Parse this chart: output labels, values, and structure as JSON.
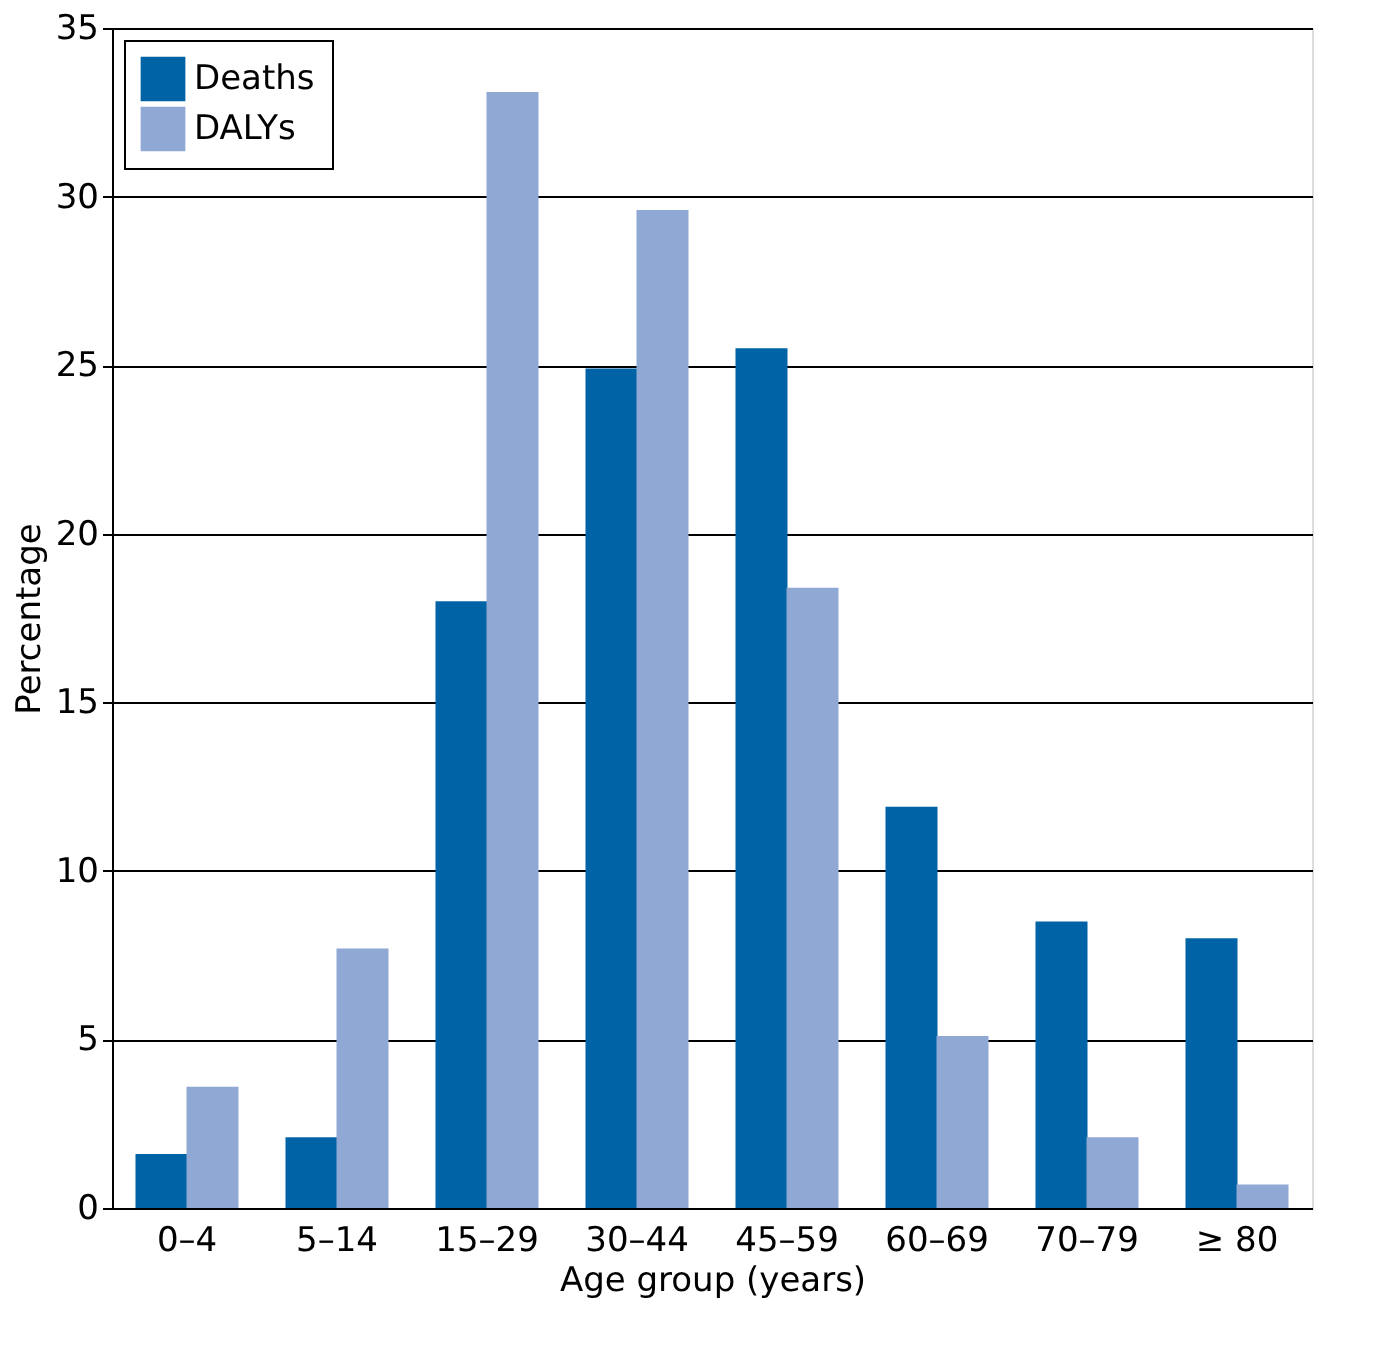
{
  "chart_data": {
    "type": "bar",
    "xlabel": "Age group (years)",
    "ylabel": "Percentage",
    "categories": [
      "0–4",
      "5–14",
      "15–29",
      "30–44",
      "45–59",
      "60–69",
      "70–79",
      "≥ 80"
    ],
    "series": [
      {
        "name": "Deaths",
        "color": "#0063a6",
        "values": [
          1.6,
          2.1,
          18.0,
          24.9,
          25.5,
          11.9,
          8.5,
          8.0
        ]
      },
      {
        "name": "DALYs",
        "color": "#8fa8d4",
        "values": [
          3.6,
          7.7,
          33.1,
          29.6,
          18.4,
          5.1,
          2.1,
          0.7
        ]
      }
    ],
    "ylim": [
      0,
      35
    ],
    "yticks": [
      0,
      5,
      10,
      15,
      20,
      25,
      30,
      35
    ],
    "grid": "y",
    "legend": "top left"
  }
}
